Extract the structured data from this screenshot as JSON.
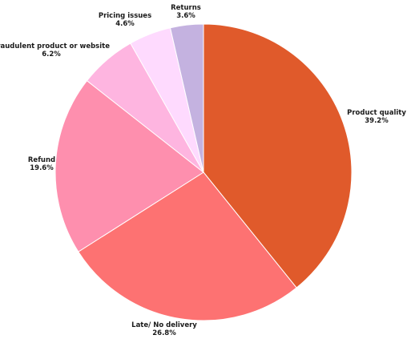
{
  "chart_data": {
    "type": "pie",
    "slices": [
      {
        "label": "Product quality",
        "value": 39.2,
        "value_label": "39.2%",
        "color": "#e05a2b"
      },
      {
        "label": "Late/ No delivery",
        "value": 26.8,
        "value_label": "26.8%",
        "color": "#fd7272"
      },
      {
        "label": "Refund",
        "value": 19.6,
        "value_label": "19.6%",
        "color": "#fe8fae"
      },
      {
        "label": "Fraudulent product or website",
        "value": 6.2,
        "value_label": "6.2%",
        "color": "#feb5e0"
      },
      {
        "label": "Pricing issues",
        "value": 4.6,
        "value_label": "4.6%",
        "color": "#fedafe"
      },
      {
        "label": "Returns",
        "value": 3.6,
        "value_label": "3.6%",
        "color": "#c4b2e0"
      }
    ],
    "start_angle_deg": 0,
    "direction": "clockwise",
    "labels_outside": true
  }
}
